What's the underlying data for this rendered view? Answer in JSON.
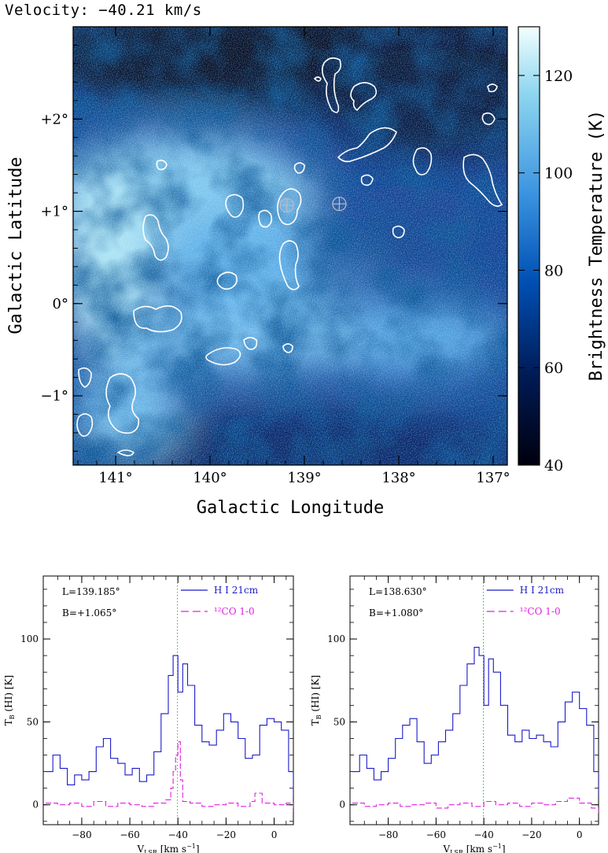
{
  "header": {
    "velocity_label": "Velocity:  −40.21 km/s"
  },
  "chart_data": [
    {
      "type": "heatmap",
      "xlabel": "Galactic Longitude",
      "ylabel": "Galactic Latitude",
      "xlim": [
        141.45,
        136.85
      ],
      "ylim": [
        -1.75,
        3.0
      ],
      "x_ticks": [
        141,
        140,
        139,
        138,
        137
      ],
      "x_tick_labels": [
        "141°",
        "140°",
        "139°",
        "138°",
        "137°"
      ],
      "y_ticks": [
        -1,
        0,
        1,
        2
      ],
      "y_tick_labels": [
        "−1°",
        "0°",
        "+1°",
        "+2°"
      ],
      "colorbar": {
        "label": "Brightness Temperature  (K)",
        "range": [
          40,
          130
        ],
        "ticks": [
          40,
          60,
          80,
          100,
          120
        ],
        "tick_labels": [
          "40",
          "60",
          "80",
          "100",
          "120"
        ],
        "colors": [
          "#00000d",
          "#001a55",
          "#0050b4",
          "#3b94e0",
          "#8fd6ef",
          "#f2ffff"
        ]
      },
      "markers": [
        {
          "l": 139.185,
          "b": 1.065,
          "symbol": "crosshair-circle"
        },
        {
          "l": 138.63,
          "b": 1.08,
          "symbol": "crosshair-circle"
        }
      ],
      "contour_color": "#ffffff"
    },
    {
      "type": "line",
      "annotation_l": "L=139.185°",
      "annotation_b": "B=+1.065°",
      "xlabel": "V",
      "xlabel_sub": "LSR",
      "xlabel_unit": " [km s",
      "xlabel_sup": "−1",
      "xlabel_end": "]",
      "ylabel": "T",
      "ylabel_sub": "B",
      "ylabel_rest": " (HI) [K]",
      "xlim": [
        -96,
        8
      ],
      "ylim": [
        -12,
        138
      ],
      "x_ticks": [
        -80,
        -60,
        -40,
        -20,
        0
      ],
      "x_tick_labels": [
        "−80",
        "−60",
        "−40",
        "−20",
        "0"
      ],
      "y_ticks": [
        0,
        50,
        100
      ],
      "y_tick_labels": [
        "0",
        "50",
        "100"
      ],
      "vline": -40.21,
      "series": [
        {
          "name": "H I 21cm",
          "color": "#1a1acc",
          "style": "solid",
          "x": [
            -95,
            -92,
            -89,
            -86,
            -83,
            -80,
            -77,
            -74,
            -71,
            -68,
            -65,
            -62,
            -59,
            -56,
            -53,
            -50,
            -47,
            -44,
            -42,
            -40,
            -38,
            -36,
            -33,
            -30,
            -27,
            -24,
            -21,
            -18,
            -15,
            -12,
            -9,
            -6,
            -3,
            0,
            3,
            6,
            8
          ],
          "y": [
            20,
            30,
            22,
            12,
            18,
            15,
            20,
            35,
            40,
            28,
            25,
            18,
            22,
            14,
            18,
            32,
            55,
            78,
            90,
            68,
            85,
            72,
            48,
            38,
            36,
            45,
            55,
            50,
            40,
            28,
            30,
            48,
            52,
            50,
            45,
            20,
            5
          ]
        },
        {
          "name": "¹²CO 1-0",
          "color": "#e020e0",
          "style": "dashed",
          "x": [
            -95,
            -90,
            -85,
            -80,
            -75,
            -70,
            -65,
            -60,
            -55,
            -50,
            -45,
            -43,
            -42,
            -41,
            -40,
            -39,
            -38,
            -35,
            -30,
            -25,
            -20,
            -15,
            -10,
            -8,
            -5,
            0,
            5,
            8
          ],
          "y": [
            1,
            0,
            1,
            -1,
            2,
            -1,
            1,
            0,
            -1,
            1,
            3,
            10,
            20,
            30,
            38,
            15,
            2,
            1,
            -1,
            0,
            1,
            -1,
            2,
            7,
            1,
            0,
            1,
            -4
          ]
        }
      ]
    },
    {
      "type": "line",
      "annotation_l": "L=138.630°",
      "annotation_b": "B=+1.080°",
      "xlabel": "V",
      "xlabel_sub": "LSR",
      "xlabel_unit": " [km s",
      "xlabel_sup": "−1",
      "xlabel_end": "]",
      "ylabel": "T",
      "ylabel_sub": "B",
      "ylabel_rest": " (HI) [K]",
      "xlim": [
        -96,
        8
      ],
      "ylim": [
        -12,
        138
      ],
      "x_ticks": [
        -80,
        -60,
        -40,
        -20,
        0
      ],
      "x_tick_labels": [
        "−80",
        "−60",
        "−40",
        "−20",
        "0"
      ],
      "y_ticks": [
        0,
        50,
        100
      ],
      "y_tick_labels": [
        "0",
        "50",
        "100"
      ],
      "vline": -40.21,
      "series": [
        {
          "name": "H I 21cm",
          "color": "#1a1acc",
          "style": "solid",
          "x": [
            -95,
            -92,
            -89,
            -86,
            -83,
            -80,
            -77,
            -74,
            -71,
            -68,
            -65,
            -62,
            -59,
            -56,
            -53,
            -50,
            -47,
            -44,
            -42,
            -40,
            -38,
            -36,
            -33,
            -30,
            -27,
            -24,
            -21,
            -18,
            -15,
            -12,
            -9,
            -6,
            -3,
            0,
            3,
            6,
            8
          ],
          "y": [
            20,
            30,
            22,
            15,
            20,
            28,
            40,
            48,
            52,
            38,
            25,
            30,
            38,
            45,
            55,
            72,
            85,
            95,
            90,
            60,
            88,
            80,
            60,
            42,
            38,
            45,
            40,
            42,
            38,
            35,
            50,
            62,
            68,
            58,
            48,
            20,
            6
          ]
        },
        {
          "name": "¹²CO 1-0",
          "color": "#e020e0",
          "style": "dashed",
          "x": [
            -95,
            -90,
            -85,
            -80,
            -75,
            -70,
            -65,
            -60,
            -55,
            -50,
            -45,
            -40,
            -35,
            -30,
            -25,
            -20,
            -15,
            -10,
            -5,
            0,
            5,
            8
          ],
          "y": [
            1,
            -1,
            0,
            1,
            -1,
            0,
            1,
            -2,
            0,
            1,
            -1,
            2,
            0,
            1,
            -1,
            1,
            0,
            2,
            4,
            1,
            -2,
            -5
          ]
        }
      ]
    }
  ]
}
